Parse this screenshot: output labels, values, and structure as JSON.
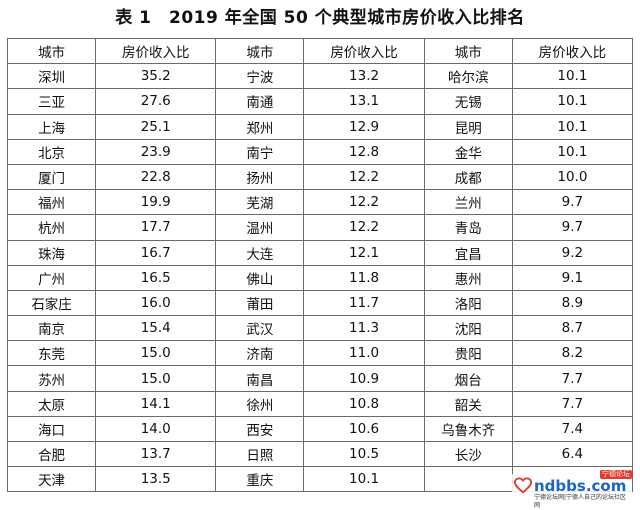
{
  "title": "表 1　2019 年全国 50 个典型城市房价收入比排名",
  "headers": [
    "城市",
    "房价收入比",
    "城市",
    "房价收入比",
    "城市",
    "房价收入比"
  ],
  "rows": [
    [
      "深圳",
      "35.2",
      "宁波",
      "13.2",
      "哈尔滨",
      "10.1"
    ],
    [
      "三亚",
      "27.6",
      "南通",
      "13.1",
      "无锡",
      "10.1"
    ],
    [
      "上海",
      "25.1",
      "郑州",
      "12.9",
      "昆明",
      "10.1"
    ],
    [
      "北京",
      "23.9",
      "南宁",
      "12.8",
      "金华",
      "10.1"
    ],
    [
      "厦门",
      "22.8",
      "扬州",
      "12.2",
      "成都",
      "10.0"
    ],
    [
      "福州",
      "19.9",
      "芜湖",
      "12.2",
      "兰州",
      "9.7"
    ],
    [
      "杭州",
      "17.7",
      "温州",
      "12.2",
      "青岛",
      "9.7"
    ],
    [
      "珠海",
      "16.7",
      "大连",
      "12.1",
      "宜昌",
      "9.2"
    ],
    [
      "广州",
      "16.5",
      "佛山",
      "11.8",
      "惠州",
      "9.1"
    ],
    [
      "石家庄",
      "16.0",
      "莆田",
      "11.7",
      "洛阳",
      "8.9"
    ],
    [
      "南京",
      "15.4",
      "武汉",
      "11.3",
      "沈阳",
      "8.7"
    ],
    [
      "东莞",
      "15.0",
      "济南",
      "11.0",
      "贵阳",
      "8.2"
    ],
    [
      "苏州",
      "15.0",
      "南昌",
      "10.9",
      "烟台",
      "7.7"
    ],
    [
      "太原",
      "14.1",
      "徐州",
      "10.8",
      "韶关",
      "7.7"
    ],
    [
      "海口",
      "14.0",
      "西安",
      "10.6",
      "乌鲁木齐",
      "7.4"
    ],
    [
      "合肥",
      "13.7",
      "日照",
      "10.5",
      "长沙",
      "6.4"
    ],
    [
      "天津",
      "13.5",
      "重庆",
      "10.1",
      "",
      ""
    ]
  ],
  "watermark": {
    "main": "ndbbs.com",
    "tag": "宁德论坛",
    "sub": "宁德论坛网|宁德人自己的论坛社区网"
  },
  "colors": {
    "border": "#6a6a6a",
    "text": "#111111",
    "watermark_blue": "#1a66c8",
    "watermark_red": "#e8382a"
  }
}
